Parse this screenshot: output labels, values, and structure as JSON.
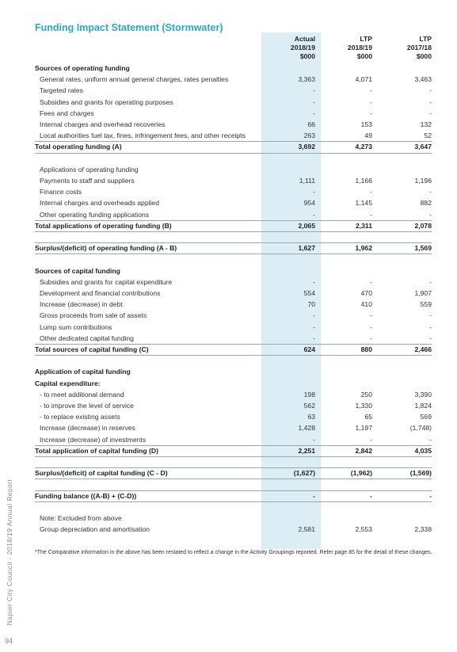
{
  "title": "Funding Impact Statement (Stormwater)",
  "header": {
    "columns": [
      [
        "Actual",
        "2018/19",
        "$000"
      ],
      [
        "LTP",
        "2018/19",
        "$000"
      ],
      [
        "LTP",
        "2017/18",
        "$000"
      ]
    ]
  },
  "sections": [
    {
      "heading": "Sources of operating funding",
      "rows": [
        {
          "label": "General rates, uniform annual general charges, rates penalties",
          "values": [
            "3,363",
            "4,071",
            "3,463"
          ]
        },
        {
          "label": "Targeted rates",
          "values": [
            "-",
            "-",
            "-"
          ]
        },
        {
          "label": "Subsidies and grants for operating purposes",
          "values": [
            "-",
            "-",
            "-"
          ]
        },
        {
          "label": "Fees and charges",
          "values": [
            "-",
            "-",
            "-"
          ]
        },
        {
          "label": "Internal charges and overhead recoveries",
          "values": [
            "66",
            "153",
            "132"
          ]
        },
        {
          "label": "Local authorities fuel tax, fines, infringement fees, and other receipts",
          "values": [
            "263",
            "49",
            "52"
          ]
        }
      ],
      "total": {
        "label": "Total operating funding (A)",
        "values": [
          "3,692",
          "4,273",
          "3,647"
        ]
      }
    },
    {
      "caption": "Applications of operating funding",
      "rows": [
        {
          "label": "Payments to staff and suppliers",
          "values": [
            "1,111",
            "1,166",
            "1,196"
          ]
        },
        {
          "label": "Finance costs",
          "values": [
            "-",
            "-",
            "-"
          ]
        },
        {
          "label": "Internal charges and overheads applied",
          "values": [
            "954",
            "1,145",
            "882"
          ]
        },
        {
          "label": "Other operating funding applications",
          "values": [
            "-",
            "-",
            "-"
          ]
        }
      ],
      "total": {
        "label": "Total applications of operating funding (B)",
        "values": [
          "2,065",
          "2,311",
          "2,078"
        ]
      }
    },
    {
      "total": {
        "label": "Surplus/(deficit) of operating funding (A - B)",
        "values": [
          "1,627",
          "1,962",
          "1,569"
        ]
      }
    },
    {
      "heading": "Sources of capital funding",
      "rows": [
        {
          "label": "Subsidies and grants for capital expenditure",
          "values": [
            "-",
            "-",
            "-"
          ]
        },
        {
          "label": "Development and financial contributions",
          "values": [
            "554",
            "470",
            "1,907"
          ]
        },
        {
          "label": "Increase (decrease) in debt",
          "values": [
            "70",
            "410",
            "559"
          ]
        },
        {
          "label": "Gross proceeds from sale of assets",
          "values": [
            "-",
            "-",
            "-"
          ]
        },
        {
          "label": "Lump sum contributions",
          "values": [
            "-",
            "-",
            "-"
          ]
        },
        {
          "label": "Other dedicated capital funding",
          "values": [
            "-",
            "-",
            "-"
          ]
        }
      ],
      "total": {
        "label": "Total sources of capital funding (C)",
        "values": [
          "624",
          "880",
          "2,466"
        ]
      }
    },
    {
      "heading": "Application of capital funding",
      "subheading": "Capital expenditure:",
      "rows": [
        {
          "label": "- to meet additional demand",
          "values": [
            "198",
            "250",
            "3,390"
          ]
        },
        {
          "label": "- to improve the level of service",
          "values": [
            "562",
            "1,330",
            "1,824"
          ]
        },
        {
          "label": "- to replace existing assets",
          "values": [
            "63",
            "65",
            "569"
          ]
        },
        {
          "label": "Increase (decrease) in reserves",
          "values": [
            "1,428",
            "1,197",
            "(1,748)"
          ]
        },
        {
          "label": "Increase (decrease) of investments",
          "values": [
            "-",
            "-",
            "-"
          ]
        }
      ],
      "total": {
        "label": "Total application of capital funding (D)",
        "values": [
          "2,251",
          "2,842",
          "4,035"
        ]
      }
    },
    {
      "total": {
        "label": "Surplus/(deficit) of capital funding (C - D)",
        "values": [
          "(1,627)",
          "(1,962)",
          "(1,569)"
        ]
      }
    },
    {
      "total": {
        "label": "Funding balance ((A-B) + (C-D))",
        "values": [
          "-",
          "-",
          "-"
        ]
      }
    },
    {
      "caption": "Note: Excluded from above",
      "rows": [
        {
          "label": "Group depreciation and amortisation",
          "values": [
            "2,581",
            "2,553",
            "2,338"
          ]
        }
      ]
    }
  ],
  "footnote": "*The Comparative information in the above has been restated to reflect a change in the Activity Groupings reported. Refer page 85 for the detail of these changes.",
  "side_text": "Napier City Council - 2018/19 Annual Report",
  "page_number": "94"
}
